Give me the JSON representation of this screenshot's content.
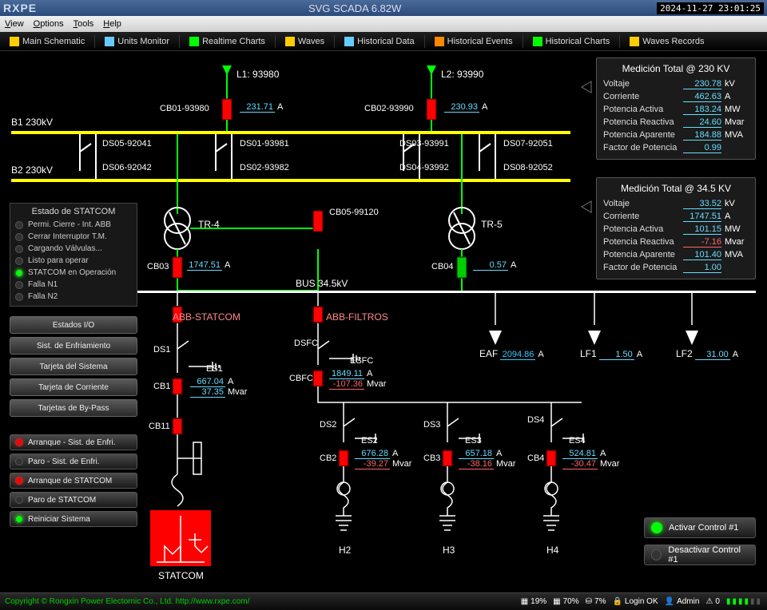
{
  "app": {
    "logo": "RXPE",
    "title": "SVG SCADA 6.82W",
    "clock": "2024-11-27 23:01:25"
  },
  "menu": [
    "View",
    "Options",
    "Tools",
    "Help"
  ],
  "toolbar": [
    {
      "label": "Main Schematic",
      "color": "#fc0"
    },
    {
      "label": "Units Monitor",
      "color": "#6cf"
    },
    {
      "label": "Realtime Charts",
      "color": "#0f0"
    },
    {
      "label": "Waves",
      "color": "#fc0"
    },
    {
      "label": "Historical Data",
      "color": "#6cf"
    },
    {
      "label": "Historical Events",
      "color": "#f80"
    },
    {
      "label": "Historical Charts",
      "color": "#0f0"
    },
    {
      "label": "Waves Records",
      "color": "#fc0"
    }
  ],
  "buses": {
    "b1": "B1 230kV",
    "b2": "B2 230kV",
    "mid": "BUS 34.5kV"
  },
  "feeders": {
    "l1": {
      "name": "L1: 93980"
    },
    "l2": {
      "name": "L2: 93990"
    },
    "cb01": {
      "name": "CB01-93980",
      "val": "231.71",
      "unit": "A"
    },
    "cb02": {
      "name": "CB02-93990",
      "val": "230.93",
      "unit": "A"
    },
    "ds": [
      "DS05-92041",
      "DS06-92042",
      "DS01-93981",
      "DS02-93982",
      "DS03-93991",
      "DS04-93992",
      "DS07-92051",
      "DS08-92052"
    ]
  },
  "tr": {
    "tr4": "TR-4",
    "tr5": "TR-5",
    "cb05": "CB05-99120",
    "cb03": {
      "name": "CB03",
      "val": "1747.51",
      "unit": "A"
    },
    "cb04": {
      "name": "CB04",
      "val": "0.57",
      "unit": "A"
    }
  },
  "branches": {
    "abb_statcom": "ABB-STATCOM",
    "abb_filtros": "ABB-FILTROS",
    "ds1": "DS1",
    "es1": "ES1",
    "cb1": {
      "name": "CB1",
      "a": "667.04",
      "mvar": "37.35"
    },
    "cb11": "CB11",
    "dsfc": "DSFC",
    "esfc": "ESFC",
    "cbfc": {
      "name": "CBFC",
      "a": "1849.11",
      "mvar": "-107.36"
    },
    "ds2": "DS2",
    "es2": "ES2",
    "cb2": {
      "name": "CB2",
      "a": "676.28",
      "mvar": "-39.27"
    },
    "ds3": "DS3",
    "es3": "ES3",
    "cb3": {
      "name": "CB3",
      "a": "657.18",
      "mvar": "-38.16"
    },
    "ds4": "DS4",
    "es4": "ES4",
    "cb4": {
      "name": "CB4",
      "a": "524.81",
      "mvar": "-30.47"
    },
    "statcom": "STATCOM",
    "h2": "H2",
    "h3": "H3",
    "h4": "H4"
  },
  "loads": {
    "eaf": {
      "name": "EAF",
      "val": "2094.86",
      "unit": "A"
    },
    "lf1": {
      "name": "LF1",
      "val": "1.50",
      "unit": "A"
    },
    "lf2": {
      "name": "LF2",
      "val": "31.00",
      "unit": "A"
    }
  },
  "meas230": {
    "title": "Medición Total @ 230 KV",
    "rows": [
      [
        "Voltaje",
        "230.78",
        "kV"
      ],
      [
        "Corriente",
        "462.63",
        "A"
      ],
      [
        "Potencia Activa",
        "183.24",
        "MW"
      ],
      [
        "Potencia Reactiva",
        "24.60",
        "Mvar"
      ],
      [
        "Potencia Aparente",
        "184.88",
        "MVA"
      ],
      [
        "Factor de Potencia",
        "0.99",
        ""
      ]
    ]
  },
  "meas345": {
    "title": "Medición Total @ 34.5 KV",
    "rows": [
      [
        "Voltaje",
        "33.52",
        "kV"
      ],
      [
        "Corriente",
        "1747.51",
        "A"
      ],
      [
        "Potencia Activa",
        "101.15",
        "MW"
      ],
      [
        "Potencia Reactiva",
        "-7.16",
        "Mvar"
      ],
      [
        "Potencia Aparente",
        "101.40",
        "MVA"
      ],
      [
        "Factor de Potencia",
        "1.00",
        ""
      ]
    ]
  },
  "status": {
    "title": "Estado de STATCOM",
    "items": [
      [
        "Permi. Cierre - Int. ABB",
        false
      ],
      [
        "Cerrar Interruptor T.M.",
        false
      ],
      [
        "Cargando Válvulas...",
        false
      ],
      [
        "Listo para operar",
        false
      ],
      [
        "STATCOM en Operación",
        true
      ],
      [
        "Falla N1",
        false
      ],
      [
        "Falla N2",
        false
      ]
    ]
  },
  "sysbtns": [
    "Estados I/O",
    "Sist. de Enfriamiento",
    "Tarjeta del Sistema",
    "Tarjeta de Corriente",
    "Tarjetas de By-Pass"
  ],
  "cmdbtns": [
    [
      "Arranque - Sist. de Enfri.",
      "red"
    ],
    [
      "Paro - Sist. de Enfri.",
      "off"
    ],
    [
      "Arranque de STATCOM",
      "red"
    ],
    [
      "Paro de STATCOM",
      "off"
    ],
    [
      "Reiniciar Sistema",
      "green"
    ]
  ],
  "ctrl": {
    "on": "Activar Control #1",
    "off": "Desactivar Control #1"
  },
  "statusbar": {
    "copy1": "Copyright © Rongxin ",
    "copy2": "Power",
    "copy3": " Electornic Co., Ltd. http://www.rxpe.com/",
    "pct1": "19%",
    "pct2": "70%",
    "pct3": "7%",
    "login": "Login OK",
    "admin": "Admin",
    "num": "0"
  }
}
